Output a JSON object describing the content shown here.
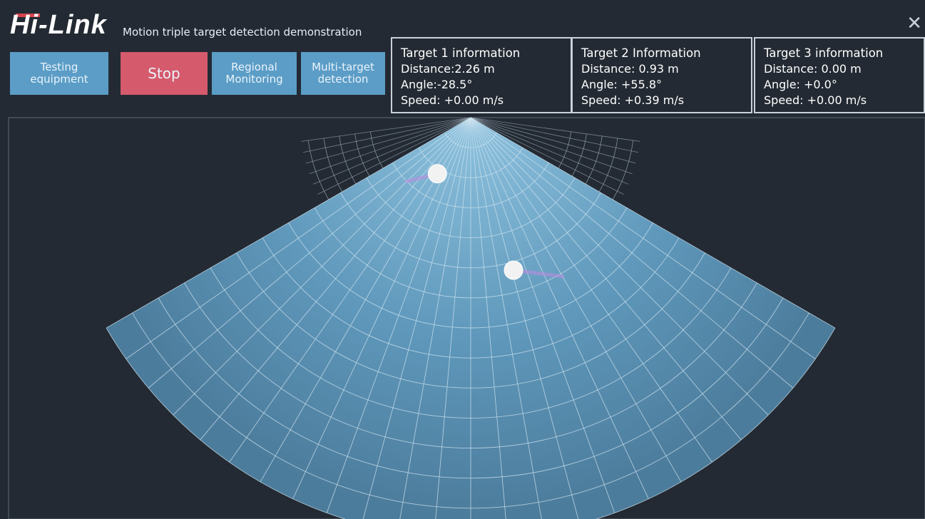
{
  "app": {
    "logo": "Hi-Link",
    "title": "Motion triple target detection demonstration",
    "close_glyph": "✕"
  },
  "toolbar": {
    "buttons": [
      {
        "label": "Testing\nequipment",
        "color": "#5b9dc6"
      },
      {
        "label": "Stop",
        "color": "#d55a6c"
      },
      {
        "label": "Regional\nMonitoring",
        "color": "#5b9dc6"
      },
      {
        "label": "Multi-target\ndetection",
        "color": "#5b9dc6"
      }
    ]
  },
  "targets": [
    {
      "title": "Target 1 information",
      "distance": "Distance:2.26 m",
      "angle": "Angle:-28.5°",
      "speed": "Speed: +0.00 m/s"
    },
    {
      "title": "Target 2 Information",
      "distance": "Distance: 0.93 m",
      "angle": "Angle: +55.8°",
      "speed": "Speed: +0.39 m/s"
    },
    {
      "title": "Target 3 information",
      "distance": "Distance: 0.00 m",
      "angle": "Angle: +0.0°",
      "speed": "Speed: +0.00 m/s"
    }
  ],
  "radar": {
    "colors": {
      "sector": "#6aa6c8",
      "grid": "#cfe3ef",
      "outer_grid": "#9aa8b4",
      "target": "#f2f2f2",
      "trail": "#c08be0"
    },
    "targets": [
      {
        "name": "target-1",
        "distance_m": 2.26,
        "angle_deg": -28.5
      },
      {
        "name": "target-2",
        "distance_m": 0.93,
        "angle_deg": 55.8
      }
    ]
  }
}
